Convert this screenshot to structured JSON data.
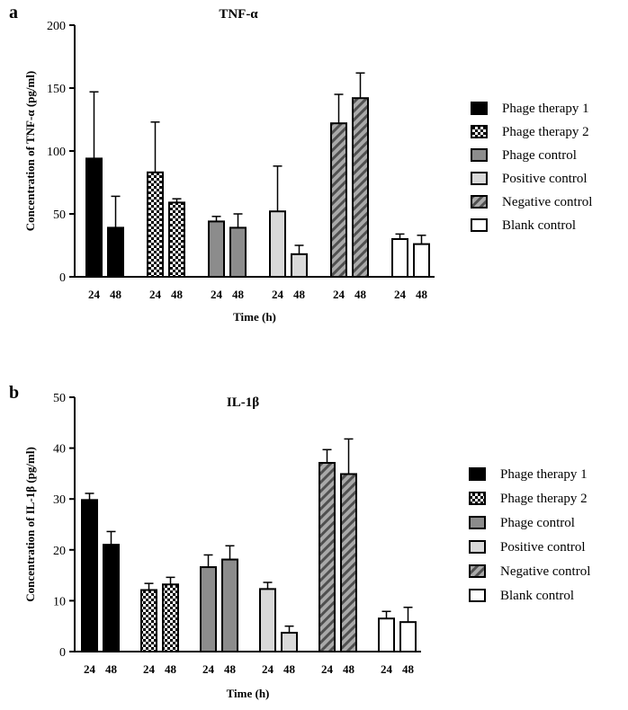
{
  "chart_data": [
    {
      "panel": "a",
      "type": "bar",
      "title": "TNF-α",
      "xlabel": "Time (h)",
      "ylabel": "Concentration of TNF-α (pg/ml)",
      "ylim": [
        0,
        200
      ],
      "yticks": [
        0,
        50,
        100,
        150,
        200
      ],
      "categories": [
        "24",
        "48"
      ],
      "series": [
        {
          "name": "Phage therapy 1",
          "pattern": "black",
          "values": [
            94,
            39
          ],
          "errors": [
            53,
            25
          ]
        },
        {
          "name": "Phage therapy 2",
          "pattern": "checker",
          "values": [
            83,
            59
          ],
          "errors": [
            40,
            3
          ]
        },
        {
          "name": "Phage control",
          "pattern": "gray",
          "values": [
            44,
            39
          ],
          "errors": [
            4,
            11
          ]
        },
        {
          "name": "Positive control",
          "pattern": "lightgray",
          "values": [
            52,
            18
          ],
          "errors": [
            36,
            7
          ]
        },
        {
          "name": "Negative control",
          "pattern": "stripes",
          "values": [
            122,
            142
          ],
          "errors": [
            23,
            20
          ]
        },
        {
          "name": "Blank control",
          "pattern": "white",
          "values": [
            30,
            26
          ],
          "errors": [
            4,
            7
          ]
        }
      ]
    },
    {
      "panel": "b",
      "type": "bar",
      "title": "IL-1β",
      "xlabel": "Time (h)",
      "ylabel": "Concentration of IL-1β (pg/ml)",
      "ylim": [
        0,
        50
      ],
      "yticks": [
        0,
        10,
        20,
        30,
        40,
        50
      ],
      "categories": [
        "24",
        "48"
      ],
      "series": [
        {
          "name": "Phage therapy 1",
          "pattern": "black",
          "values": [
            29.8,
            21
          ],
          "errors": [
            1.3,
            2.6
          ]
        },
        {
          "name": "Phage therapy 2",
          "pattern": "checker",
          "values": [
            12.1,
            13.2
          ],
          "errors": [
            1.3,
            1.4
          ]
        },
        {
          "name": "Phage control",
          "pattern": "gray",
          "values": [
            16.6,
            18.1
          ],
          "errors": [
            2.4,
            2.7
          ]
        },
        {
          "name": "Positive control",
          "pattern": "lightgray",
          "values": [
            12.3,
            3.7
          ],
          "errors": [
            1.3,
            1.3
          ]
        },
        {
          "name": "Negative control",
          "pattern": "stripes",
          "values": [
            37.1,
            34.9
          ],
          "errors": [
            2.6,
            6.9
          ]
        },
        {
          "name": "Blank control",
          "pattern": "white",
          "values": [
            6.5,
            5.8
          ],
          "errors": [
            1.4,
            2.9
          ]
        }
      ]
    }
  ]
}
